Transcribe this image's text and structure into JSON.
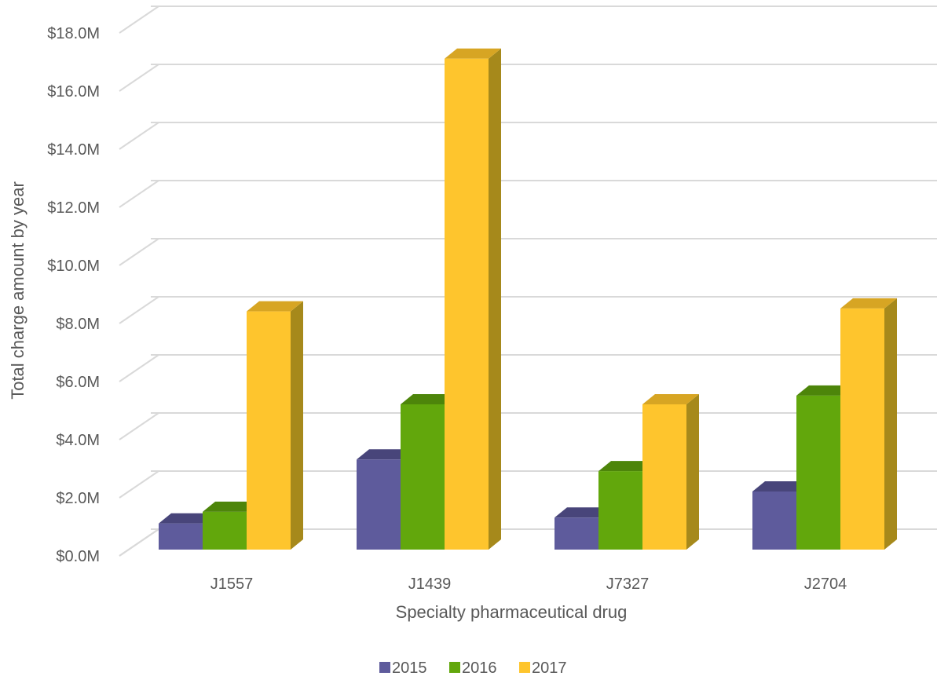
{
  "chart_data": {
    "type": "bar",
    "categories": [
      "J1557",
      "J1439",
      "J7327",
      "J2704"
    ],
    "series": [
      {
        "name": "2015",
        "values": [
          0.9,
          3.1,
          1.1,
          2.0
        ],
        "color": "#5e5b9c",
        "top_color": "#48457a",
        "side_color": "#45427a"
      },
      {
        "name": "2016",
        "values": [
          1.3,
          5.0,
          2.7,
          5.3
        ],
        "color": "#62a70c",
        "top_color": "#4d850a",
        "side_color": "#4a7f08"
      },
      {
        "name": "2017",
        "values": [
          8.2,
          16.9,
          5.0,
          8.3
        ],
        "color": "#fec52d",
        "top_color": "#d7a523",
        "side_color": "#a6891b"
      }
    ],
    "title": "",
    "xlabel": "Specialty pharmaceutical drug",
    "ylabel": "Total charge amount by year",
    "ylim": [
      0,
      18
    ],
    "yticks": [
      "$0.0M",
      "$2.0M",
      "$4.0M",
      "$6.0M",
      "$8.0M",
      "$10.0M",
      "$12.0M",
      "$14.0M",
      "$16.0M",
      "$18.0M"
    ],
    "grid": true,
    "legend_position": "bottom"
  }
}
